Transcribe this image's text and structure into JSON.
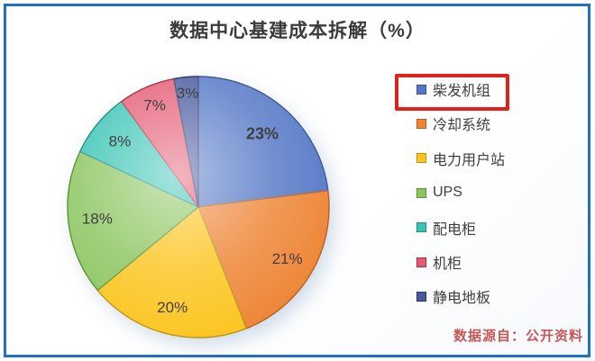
{
  "title": "数据中心基建成本拆解（%）",
  "source_note": "数据源自：公开资料",
  "colors": {
    "frame_border": "#1f70c8",
    "title_text": "#3b3b3b",
    "source_text": "#c85757",
    "highlight_box": "#e3211c",
    "slice_label_text": "#3f3f3f",
    "legend_text": "#3e3e3e"
  },
  "chart_data": {
    "type": "pie",
    "title": "数据中心基建成本拆解（%）",
    "categories": [
      "柴发机组",
      "冷却系统",
      "电力用户站",
      "UPS",
      "配电柜",
      "机柜",
      "静电地板"
    ],
    "values": [
      23,
      21,
      20,
      18,
      8,
      7,
      3
    ],
    "slice_labels": [
      "23%",
      "21%",
      "20%",
      "18%",
      "8%",
      "7%",
      "3%"
    ],
    "slice_colors": [
      "#5377c6",
      "#ee8434",
      "#fcc41d",
      "#8cc55f",
      "#38c4b4",
      "#e45a72",
      "#47589e"
    ],
    "slice_stroke_colors": [
      "#3a5494",
      "#b85e17",
      "#bf9413",
      "#56962f",
      "#1f8f85",
      "#ab2f44",
      "#2c3766"
    ],
    "start_angle_deg": 0,
    "direction": "clockwise",
    "legend_position": "right",
    "highlighted_category_index": 0,
    "bold_label_index": 0,
    "label_radius_fractions": [
      0.74,
      0.79,
      0.8,
      0.78,
      0.78,
      0.84,
      0.87
    ]
  }
}
